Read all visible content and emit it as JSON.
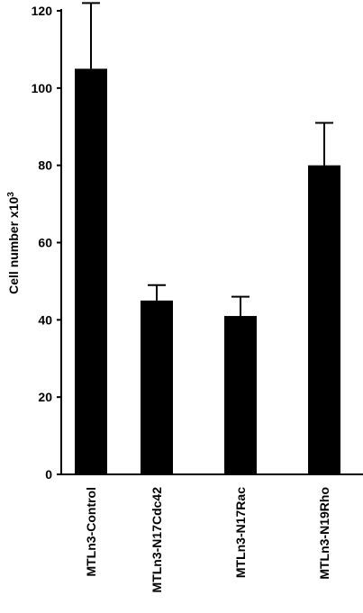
{
  "chart_data": {
    "type": "bar",
    "categories": [
      "MTLn3-Control",
      "MTLn3-N17Cdc42",
      "MTLn3-N17Rac",
      "MTLn3-N19Rho"
    ],
    "values": [
      105,
      45,
      41,
      80
    ],
    "errors": [
      17,
      4,
      5,
      11
    ],
    "ylabel": "Cell number x10",
    "ylabel_superscript": "3",
    "ylim": [
      0,
      120
    ],
    "yticks": [
      0,
      20,
      40,
      60,
      80,
      100,
      120
    ],
    "bar_color": "#000000",
    "grid": false
  }
}
